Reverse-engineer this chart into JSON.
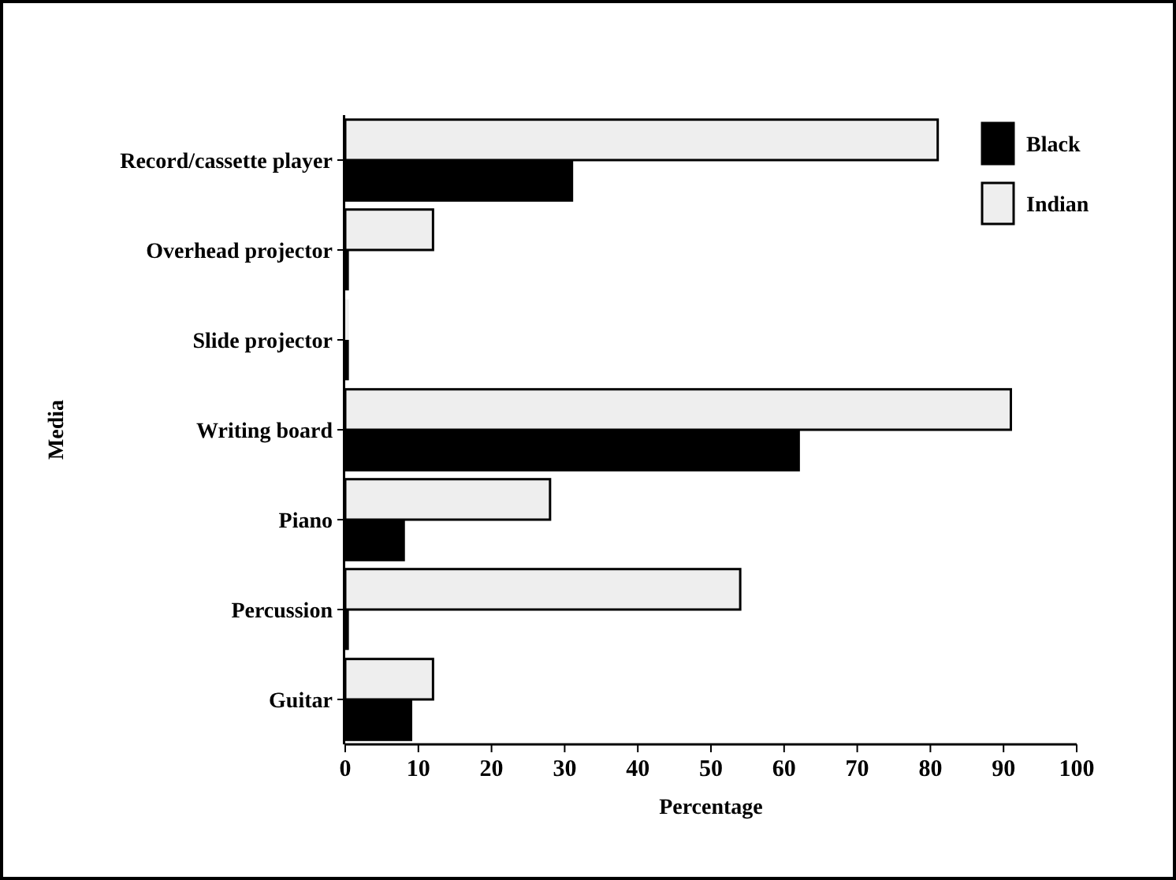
{
  "chart_data": {
    "type": "bar",
    "orientation": "horizontal",
    "xlabel": "Percentage",
    "ylabel": "Media",
    "categories": [
      "Record/cassette player",
      "Overhead projector",
      "Slide projector",
      "Writing board",
      "Piano",
      "Percussion",
      "Guitar"
    ],
    "series": [
      {
        "name": "Black",
        "color": "#000000",
        "values": [
          31,
          0.5,
          0.5,
          62,
          8,
          0.5,
          9
        ]
      },
      {
        "name": "Indian",
        "color": "#eeeeee",
        "values": [
          81,
          12,
          0.5,
          91,
          28,
          54,
          12
        ]
      }
    ],
    "xlim": [
      0,
      100
    ],
    "xticks": [
      0,
      10,
      20,
      30,
      40,
      50,
      60,
      70,
      80,
      90,
      100
    ],
    "grid": false,
    "legend": "top right"
  }
}
